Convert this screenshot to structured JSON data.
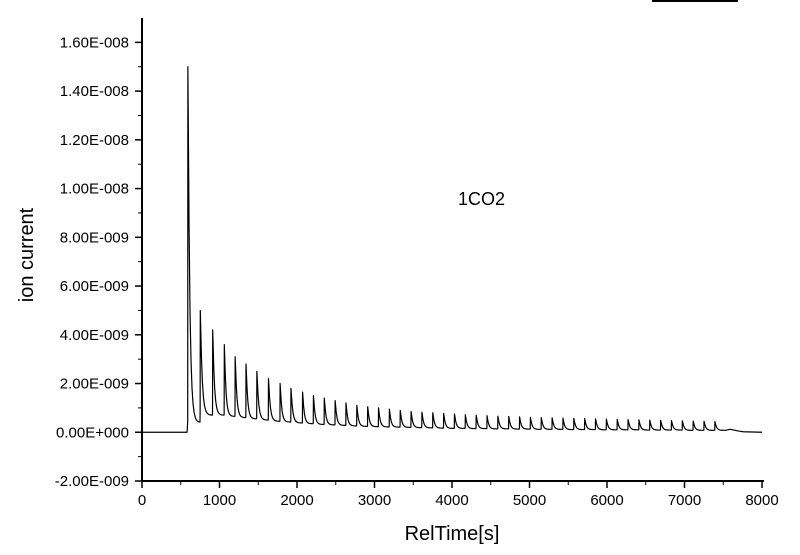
{
  "chart_data": {
    "type": "line",
    "xlabel": "RelTime[s]",
    "ylabel": "ion current",
    "annotation": "1CO2",
    "xlim": [
      0,
      8000
    ],
    "ylim": [
      -2e-09,
      1.7e-08
    ],
    "x_ticks": [
      0,
      1000,
      2000,
      3000,
      4000,
      5000,
      6000,
      7000,
      8000
    ],
    "x_tick_labels": [
      "0",
      "1000",
      "2000",
      "3000",
      "4000",
      "5000",
      "6000",
      "7000",
      "8000"
    ],
    "y_ticks": [
      -2e-09,
      0,
      2e-09,
      4e-09,
      6e-09,
      8e-09,
      1e-08,
      1.2e-08,
      1.4e-08,
      1.6e-08
    ],
    "y_tick_labels": [
      "-2.00E-009",
      "0.00E+000",
      "2.00E-009",
      "4.00E-009",
      "6.00E-009",
      "8.00E-009",
      "1.00E-008",
      "1.20E-008",
      "1.40E-008",
      "1.60E-008"
    ],
    "grid": false,
    "series": [
      {
        "baseline": 0,
        "peak_times": [
          590,
          750,
          910,
          1060,
          1200,
          1340,
          1480,
          1630,
          1780,
          1920,
          2070,
          2210,
          2350,
          2490,
          2630,
          2770,
          2910,
          3050,
          3190,
          3330,
          3470,
          3610,
          3750,
          3890,
          4030,
          4170,
          4310,
          4450,
          4590,
          4730,
          4870,
          5010,
          5150,
          5290,
          5430,
          5570,
          5710,
          5850,
          5990,
          6130,
          6270,
          6410,
          6550,
          6690,
          6830,
          6970,
          7110,
          7250,
          7390
        ],
        "peak_values": [
          1.5e-08,
          5e-09,
          4.2e-09,
          3.6e-09,
          3.1e-09,
          2.8e-09,
          2.5e-09,
          2.2e-09,
          2e-09,
          1.8e-09,
          1.65e-09,
          1.5e-09,
          1.4e-09,
          1.3e-09,
          1.2e-09,
          1.1e-09,
          1.05e-09,
          1e-09,
          9.5e-10,
          9e-10,
          8.5e-10,
          8.2e-10,
          8e-10,
          7.7e-10,
          7.5e-10,
          7.2e-10,
          7e-10,
          6.8e-10,
          6.6e-10,
          6.5e-10,
          6.3e-10,
          6.1e-10,
          6e-10,
          5.9e-10,
          5.8e-10,
          5.7e-10,
          5.6e-10,
          5.5e-10,
          5.4e-10,
          5.3e-10,
          5.2e-10,
          5.1e-10,
          5e-10,
          4.9e-10,
          4.8e-10,
          4.7e-10,
          4.6e-10,
          4.5e-10,
          4.4e-10
        ],
        "trough_values": [
          4e-10,
          7e-10,
          7e-10,
          6.5e-10,
          6e-10,
          5.5e-10,
          5e-10,
          4.5e-10,
          4.2e-10,
          3.8e-10,
          3.5e-10,
          3.2e-10,
          3e-10,
          2.8e-10,
          2.6e-10,
          2.4e-10,
          2.3e-10,
          2.2e-10,
          2.1e-10,
          2e-10,
          1.9e-10,
          1.8e-10,
          1.7e-10,
          1.6e-10,
          1.6e-10,
          1.5e-10,
          1.5e-10,
          1.4e-10,
          1.4e-10,
          1.3e-10,
          1.3e-10,
          1.2e-10,
          1.2e-10,
          1.2e-10,
          1.1e-10,
          1.1e-10,
          1.1e-10,
          1e-10,
          1e-10,
          1e-10,
          1e-10,
          9e-11,
          9e-11,
          9e-11,
          9e-11,
          8e-11,
          8e-11,
          8e-11,
          8e-11
        ],
        "end_x": 8000,
        "end_y": 0
      }
    ]
  },
  "colors": {
    "line": "#000000",
    "axis": "#000000"
  }
}
